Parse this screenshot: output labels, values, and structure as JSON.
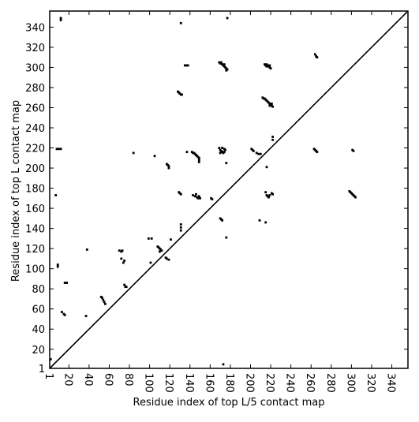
{
  "chart_data": {
    "type": "scatter",
    "xlabel": "Residue index of top L/5 contact map",
    "ylabel": "Residue index of top L contact map",
    "xlim": [
      1,
      356
    ],
    "ylim": [
      1,
      356
    ],
    "xticks": [
      1,
      20,
      40,
      60,
      80,
      100,
      120,
      140,
      160,
      180,
      200,
      220,
      240,
      260,
      280,
      300,
      320,
      340
    ],
    "yticks": [
      1,
      20,
      40,
      60,
      80,
      100,
      120,
      140,
      160,
      180,
      200,
      220,
      240,
      260,
      280,
      300,
      320,
      340
    ],
    "diagonal": true,
    "color": "#000000",
    "grid": false,
    "x": [
      12,
      12,
      131,
      177,
      135,
      136,
      137,
      138,
      169,
      170,
      171,
      172,
      173,
      174,
      175,
      176,
      177,
      171,
      174,
      176,
      214,
      215,
      216,
      217,
      218,
      219,
      220,
      219,
      216,
      264,
      265,
      266,
      128,
      129,
      130,
      131,
      132,
      212,
      213,
      214,
      215,
      216,
      217,
      218,
      219,
      220,
      221,
      222,
      219,
      221,
      222,
      222,
      8,
      10,
      12,
      84,
      105,
      117,
      118,
      119,
      119,
      137,
      142,
      143,
      144,
      145,
      146,
      147,
      148,
      149,
      149,
      149,
      169,
      170,
      171,
      172,
      173,
      174,
      175,
      172,
      174,
      170,
      201,
      202,
      203,
      206,
      208,
      210,
      216,
      176,
      263,
      264,
      265,
      266,
      301,
      302,
      129,
      130,
      131,
      143,
      145,
      146,
      147,
      148,
      149,
      150,
      161,
      162,
      215,
      216,
      217,
      218,
      219,
      221,
      222,
      298,
      299,
      300,
      301,
      302,
      303,
      304,
      209,
      215,
      9,
      9,
      7,
      16,
      18,
      13,
      15,
      16,
      37,
      38,
      52,
      53,
      54,
      55,
      56,
      70,
      72,
      73,
      72,
      75,
      74,
      75,
      76,
      77,
      99,
      102,
      101,
      108,
      109,
      110,
      111,
      112,
      110,
      116,
      117,
      119,
      121,
      131,
      131,
      131,
      170,
      171,
      172,
      176,
      173,
      2
    ],
    "values": [
      347,
      349,
      344,
      349,
      302,
      302,
      302,
      302,
      305,
      304,
      304,
      303,
      302,
      301,
      300,
      299,
      298,
      305,
      303,
      297,
      303,
      302,
      301,
      302,
      301,
      300,
      299,
      302,
      303,
      313,
      311,
      310,
      276,
      275,
      274,
      273,
      273,
      270,
      269,
      269,
      268,
      267,
      266,
      265,
      264,
      263,
      262,
      261,
      262,
      264,
      228,
      231,
      219,
      219,
      219,
      215,
      212,
      204,
      203,
      202,
      200,
      216,
      216,
      215,
      215,
      214,
      213,
      212,
      211,
      210,
      208,
      206,
      220,
      218,
      217,
      216,
      215,
      216,
      218,
      220,
      219,
      215,
      219,
      218,
      217,
      215,
      214,
      214,
      201,
      205,
      219,
      218,
      217,
      216,
      218,
      217,
      176,
      175,
      174,
      173,
      172,
      174,
      171,
      170,
      172,
      170,
      170,
      169,
      176,
      173,
      172,
      171,
      173,
      175,
      174,
      177,
      176,
      175,
      174,
      173,
      172,
      171,
      148,
      146,
      104,
      102,
      173,
      86,
      86,
      57,
      55,
      54,
      53,
      119,
      72,
      71,
      69,
      67,
      65,
      118,
      117,
      118,
      110,
      108,
      106,
      84,
      82,
      82,
      130,
      130,
      106,
      122,
      121,
      120,
      119,
      118,
      117,
      111,
      110,
      109,
      129,
      144,
      141,
      138,
      150,
      149,
      148,
      131,
      5,
      10
    ]
  }
}
